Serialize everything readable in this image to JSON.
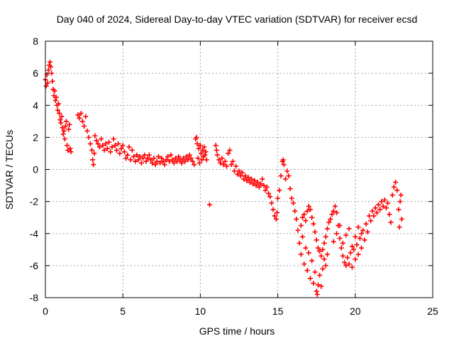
{
  "chart_data": {
    "type": "scatter",
    "title": "Day 040 of 2024, Sidereal Day-to-day VTEC variation (SDTVAR) for receiver ecsd",
    "xlabel": "GPS time / hours",
    "ylabel": "SDTVAR / TECUs",
    "xlim": [
      0,
      25
    ],
    "ylim": [
      -8,
      8
    ],
    "xticks": [
      0,
      5,
      10,
      15,
      20,
      25
    ],
    "yticks": [
      -8,
      -6,
      -4,
      -2,
      0,
      2,
      4,
      6,
      8
    ],
    "grid": true,
    "marker": "+",
    "color": "#ff0000",
    "series": [
      {
        "name": "SDTVAR",
        "points": [
          [
            0.0,
            5.6
          ],
          [
            0.05,
            5.2
          ],
          [
            0.1,
            5.9
          ],
          [
            0.15,
            5.4
          ],
          [
            0.2,
            6.2
          ],
          [
            0.25,
            6.5
          ],
          [
            0.3,
            6.7
          ],
          [
            0.35,
            6.4
          ],
          [
            0.4,
            6.0
          ],
          [
            0.45,
            5.5
          ],
          [
            0.5,
            5.0
          ],
          [
            0.55,
            4.6
          ],
          [
            0.6,
            4.9
          ],
          [
            0.65,
            4.3
          ],
          [
            0.7,
            4.5
          ],
          [
            0.75,
            4.0
          ],
          [
            0.8,
            3.7
          ],
          [
            0.85,
            4.1
          ],
          [
            0.9,
            3.5
          ],
          [
            0.95,
            3.1
          ],
          [
            1.0,
            2.9
          ],
          [
            1.05,
            3.3
          ],
          [
            1.1,
            2.6
          ],
          [
            1.15,
            2.2
          ],
          [
            1.2,
            2.4
          ],
          [
            1.25,
            1.9
          ],
          [
            1.3,
            2.7
          ],
          [
            1.35,
            3.0
          ],
          [
            1.4,
            1.5
          ],
          [
            1.45,
            1.2
          ],
          [
            1.5,
            2.5
          ],
          [
            1.55,
            2.8
          ],
          [
            1.6,
            1.3
          ],
          [
            1.65,
            1.1
          ],
          [
            2.1,
            3.4
          ],
          [
            2.2,
            3.2
          ],
          [
            2.3,
            3.5
          ],
          [
            2.4,
            3.0
          ],
          [
            2.5,
            2.7
          ],
          [
            2.6,
            3.3
          ],
          [
            2.7,
            2.4
          ],
          [
            2.8,
            2.0
          ],
          [
            2.9,
            1.6
          ],
          [
            3.0,
            1.2
          ],
          [
            3.05,
            0.6
          ],
          [
            3.1,
            0.3
          ],
          [
            3.15,
            1.0
          ],
          [
            3.2,
            2.1
          ],
          [
            3.3,
            1.8
          ],
          [
            3.4,
            1.6
          ],
          [
            3.5,
            1.4
          ],
          [
            3.6,
            1.9
          ],
          [
            3.7,
            1.5
          ],
          [
            3.8,
            1.2
          ],
          [
            3.9,
            1.6
          ],
          [
            4.0,
            1.3
          ],
          [
            4.1,
            1.7
          ],
          [
            4.2,
            1.1
          ],
          [
            4.3,
            1.4
          ],
          [
            4.4,
            1.9
          ],
          [
            4.5,
            1.5
          ],
          [
            4.6,
            1.2
          ],
          [
            4.7,
            1.6
          ],
          [
            4.8,
            1.0
          ],
          [
            4.9,
            1.3
          ],
          [
            5.0,
            1.5
          ],
          [
            5.1,
            1.1
          ],
          [
            5.2,
            0.7
          ],
          [
            5.3,
            0.9
          ],
          [
            5.4,
            1.4
          ],
          [
            5.5,
            0.6
          ],
          [
            5.6,
            1.2
          ],
          [
            5.7,
            0.8
          ],
          [
            5.8,
            0.5
          ],
          [
            5.9,
            0.9
          ],
          [
            6.0,
            0.6
          ],
          [
            6.1,
            0.8
          ],
          [
            6.2,
            0.4
          ],
          [
            6.3,
            0.7
          ],
          [
            6.4,
            0.9
          ],
          [
            6.5,
            0.5
          ],
          [
            6.6,
            0.7
          ],
          [
            6.7,
            0.9
          ],
          [
            6.8,
            0.6
          ],
          [
            6.9,
            0.4
          ],
          [
            7.0,
            0.7
          ],
          [
            7.1,
            0.3
          ],
          [
            7.2,
            0.5
          ],
          [
            7.3,
            0.8
          ],
          [
            7.4,
            0.4
          ],
          [
            7.5,
            0.7
          ],
          [
            7.6,
            0.5
          ],
          [
            7.7,
            0.3
          ],
          [
            7.8,
            0.6
          ],
          [
            7.9,
            0.8
          ],
          [
            8.0,
            0.5
          ],
          [
            8.1,
            0.9
          ],
          [
            8.2,
            0.6
          ],
          [
            8.3,
            0.4
          ],
          [
            8.4,
            0.7
          ],
          [
            8.5,
            0.5
          ],
          [
            8.6,
            0.8
          ],
          [
            8.7,
            0.6
          ],
          [
            8.8,
            0.4
          ],
          [
            8.9,
            0.7
          ],
          [
            9.0,
            0.5
          ],
          [
            9.1,
            0.8
          ],
          [
            9.2,
            0.6
          ],
          [
            9.3,
            0.9
          ],
          [
            9.4,
            0.7
          ],
          [
            9.5,
            0.5
          ],
          [
            9.6,
            0.3
          ],
          [
            9.7,
            1.9
          ],
          [
            9.75,
            2.0
          ],
          [
            9.8,
            1.6
          ],
          [
            9.85,
            0.7
          ],
          [
            9.9,
            1.3
          ],
          [
            9.95,
            0.4
          ],
          [
            10.0,
            1.5
          ],
          [
            10.05,
            1.0
          ],
          [
            10.1,
            0.6
          ],
          [
            10.15,
            1.2
          ],
          [
            10.2,
            0.8
          ],
          [
            10.25,
            1.4
          ],
          [
            10.3,
            0.9
          ],
          [
            10.35,
            1.1
          ],
          [
            10.4,
            0.6
          ],
          [
            10.6,
            -2.2
          ],
          [
            11.0,
            1.5
          ],
          [
            11.05,
            1.2
          ],
          [
            11.1,
            0.9
          ],
          [
            11.2,
            0.6
          ],
          [
            11.3,
            0.4
          ],
          [
            11.4,
            0.7
          ],
          [
            11.5,
            0.3
          ],
          [
            11.6,
            0.5
          ],
          [
            11.7,
            0.2
          ],
          [
            11.8,
            1.0
          ],
          [
            11.9,
            1.2
          ],
          [
            12.0,
            0.3
          ],
          [
            12.1,
            0.5
          ],
          [
            12.2,
            -0.1
          ],
          [
            12.3,
            0.2
          ],
          [
            12.4,
            -0.3
          ],
          [
            12.5,
            -0.1
          ],
          [
            12.6,
            -0.4
          ],
          [
            12.7,
            -0.2
          ],
          [
            12.8,
            -0.6
          ],
          [
            12.9,
            -0.4
          ],
          [
            13.0,
            -0.7
          ],
          [
            13.1,
            -0.5
          ],
          [
            13.2,
            -0.8
          ],
          [
            13.3,
            -0.6
          ],
          [
            13.4,
            -0.9
          ],
          [
            13.5,
            -0.7
          ],
          [
            13.6,
            -1.0
          ],
          [
            13.7,
            -0.8
          ],
          [
            13.8,
            -1.1
          ],
          [
            13.9,
            -0.9
          ],
          [
            14.0,
            -0.6
          ],
          [
            14.1,
            -1.0
          ],
          [
            14.2,
            -1.3
          ],
          [
            14.3,
            -1.1
          ],
          [
            14.4,
            -1.5
          ],
          [
            14.5,
            -1.7
          ],
          [
            14.6,
            -2.1
          ],
          [
            14.7,
            -2.5
          ],
          [
            14.8,
            -2.9
          ],
          [
            14.9,
            -3.1
          ],
          [
            14.95,
            -2.7
          ],
          [
            15.0,
            -1.8
          ],
          [
            15.1,
            -1.3
          ],
          [
            15.2,
            -0.4
          ],
          [
            15.3,
            0.5
          ],
          [
            15.35,
            0.6
          ],
          [
            15.4,
            0.3
          ],
          [
            15.5,
            -0.6
          ],
          [
            15.6,
            -0.1
          ],
          [
            15.7,
            -0.4
          ],
          [
            15.8,
            -1.2
          ],
          [
            15.9,
            -1.8
          ],
          [
            16.0,
            -2.1
          ],
          [
            16.1,
            -2.6
          ],
          [
            16.2,
            -3.1
          ],
          [
            16.3,
            -3.8
          ],
          [
            16.4,
            -4.6
          ],
          [
            16.5,
            -5.3
          ],
          [
            16.6,
            -4.2
          ],
          [
            16.7,
            -5.9
          ],
          [
            16.8,
            -4.9
          ],
          [
            16.9,
            -6.3
          ],
          [
            17.0,
            -5.2
          ],
          [
            17.1,
            -6.8
          ],
          [
            17.2,
            -5.7
          ],
          [
            17.3,
            -7.1
          ],
          [
            17.4,
            -6.4
          ],
          [
            17.5,
            -7.6
          ],
          [
            17.55,
            -7.8
          ],
          [
            17.6,
            -7.2
          ],
          [
            17.7,
            -6.6
          ],
          [
            17.8,
            -7.3
          ],
          [
            17.9,
            -6.2
          ],
          [
            18.0,
            -5.6
          ],
          [
            18.1,
            -6.0
          ],
          [
            18.2,
            -5.3
          ],
          [
            16.5,
            -3.5
          ],
          [
            16.6,
            -3.0
          ],
          [
            16.7,
            -2.8
          ],
          [
            16.8,
            -3.2
          ],
          [
            16.9,
            -2.6
          ],
          [
            17.0,
            -2.3
          ],
          [
            17.1,
            -2.5
          ],
          [
            17.2,
            -3.0
          ],
          [
            17.3,
            -3.4
          ],
          [
            17.4,
            -3.9
          ],
          [
            17.5,
            -4.4
          ],
          [
            17.6,
            -4.9
          ],
          [
            17.7,
            -5.1
          ],
          [
            17.8,
            -5.4
          ],
          [
            17.9,
            -5.0
          ],
          [
            18.0,
            -4.6
          ],
          [
            18.1,
            -4.2
          ],
          [
            18.2,
            -3.7
          ],
          [
            18.3,
            -3.3
          ],
          [
            18.4,
            -3.1
          ],
          [
            18.5,
            -2.8
          ],
          [
            18.6,
            -2.6
          ],
          [
            18.7,
            -2.3
          ],
          [
            18.8,
            -2.7
          ],
          [
            18.9,
            -3.5
          ],
          [
            19.0,
            -4.3
          ],
          [
            19.1,
            -4.9
          ],
          [
            19.2,
            -5.4
          ],
          [
            19.3,
            -5.8
          ],
          [
            19.4,
            -6.0
          ],
          [
            19.5,
            -5.5
          ],
          [
            19.6,
            -5.9
          ],
          [
            19.7,
            -5.2
          ],
          [
            19.8,
            -6.1
          ],
          [
            19.9,
            -5.0
          ],
          [
            20.0,
            -5.6
          ],
          [
            20.1,
            -4.7
          ],
          [
            20.2,
            -5.3
          ],
          [
            20.3,
            -4.3
          ],
          [
            20.4,
            -4.9
          ],
          [
            20.5,
            -3.8
          ],
          [
            20.6,
            -4.4
          ],
          [
            20.7,
            -3.4
          ],
          [
            20.8,
            -3.9
          ],
          [
            20.9,
            -2.9
          ],
          [
            21.0,
            -3.2
          ],
          [
            21.1,
            -2.6
          ],
          [
            21.2,
            -2.9
          ],
          [
            21.3,
            -2.4
          ],
          [
            21.4,
            -2.7
          ],
          [
            21.5,
            -2.2
          ],
          [
            21.6,
            -2.5
          ],
          [
            21.7,
            -2.0
          ],
          [
            21.8,
            -2.3
          ],
          [
            21.9,
            -1.9
          ],
          [
            22.0,
            -2.4
          ],
          [
            22.1,
            -2.1
          ],
          [
            22.2,
            -2.8
          ],
          [
            22.3,
            -3.3
          ],
          [
            22.4,
            -1.6
          ],
          [
            22.5,
            -1.1
          ],
          [
            22.6,
            -0.8
          ],
          [
            22.7,
            -1.3
          ],
          [
            22.8,
            -2.5
          ],
          [
            22.85,
            -3.6
          ],
          [
            22.9,
            -2.0
          ],
          [
            22.95,
            -1.6
          ],
          [
            23.0,
            -3.1
          ],
          [
            18.6,
            -4.5
          ],
          [
            18.8,
            -4.0
          ],
          [
            19.0,
            -3.5
          ],
          [
            19.2,
            -4.6
          ],
          [
            19.4,
            -4.1
          ],
          [
            19.6,
            -3.7
          ],
          [
            19.8,
            -4.8
          ],
          [
            20.0,
            -4.2
          ],
          [
            20.2,
            -3.6
          ],
          [
            20.4,
            -4.0
          ]
        ]
      }
    ]
  }
}
